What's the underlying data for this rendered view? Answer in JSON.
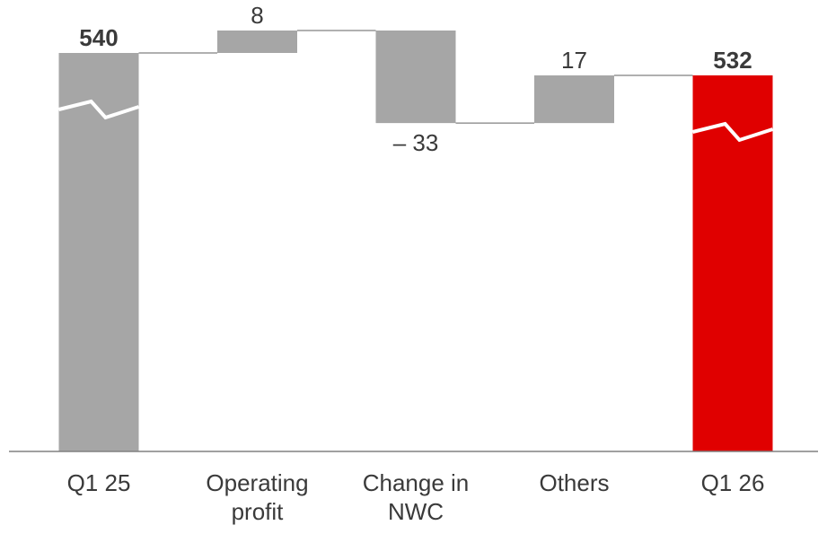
{
  "chart_data": {
    "type": "waterfall",
    "categories": [
      "Q1 25",
      "Operating\nprofit",
      "Change in\nNWC",
      "Others",
      "Q1 26"
    ],
    "values": [
      540,
      8,
      -33,
      17,
      532
    ],
    "kinds": [
      "total",
      "delta",
      "delta",
      "delta",
      "total"
    ],
    "value_labels": [
      "540",
      "8",
      "– 33",
      "17",
      "532"
    ],
    "bold_labels": [
      true,
      false,
      false,
      false,
      true
    ],
    "axis_break_on_totals": true,
    "colors": {
      "bar": "#a6a6a6",
      "highlight": "#e00000",
      "connector": "#808080",
      "axis": "#808080",
      "text": "#3a3a3a",
      "bold_text": "#3a3a3a",
      "break_line": "#ffffff"
    },
    "highlight_index": 4
  }
}
